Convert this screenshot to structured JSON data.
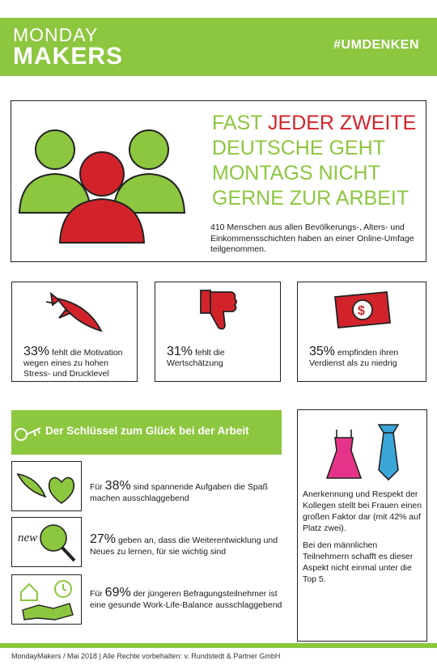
{
  "header": {
    "logo_line1": "MONDAY",
    "logo_line2": "MAKERS",
    "hashtag": "#UMDENKEN"
  },
  "hero": {
    "title_part1": "FAST ",
    "title_highlight": "JEDER ZWEITE",
    "title_part2": "DEUTSCHE GEHT MONTAGS NICHT GERNE ZUR ARBEIT",
    "text": "410 Menschen aus allen Bevölkerungs-, Alters- und Einkommensschichten haben an einer Online-Umfage teilgenommen."
  },
  "stats": [
    {
      "pct": "33%",
      "text": " fehlt die Motivation wegen eines zu hohen Stress- und Drucklevel",
      "icon": "rocket-icon"
    },
    {
      "pct": "31%",
      "text": " fehlt die Wertschätzung",
      "icon": "thumbs-down-icon"
    },
    {
      "pct": "35%",
      "text": " empfinden ihren Verdienst als zu niedrig",
      "icon": "money-icon"
    }
  ],
  "key_section": {
    "title": "Der Schlüssel zum Glück bei der Arbeit",
    "items": [
      {
        "prefix": "Für ",
        "pct": "38%",
        "text": " sind spannende Aufgaben die Spaß machen ausschlaggebend",
        "icon": "rocket-heart-icon"
      },
      {
        "prefix": "",
        "pct": "27%",
        "text": " geben an, dass die Weiterentwicklung und Neues zu lernen, für sie wichtig sind",
        "icon": "new-magnifier-icon",
        "icon_text": "new"
      },
      {
        "prefix": "Für ",
        "pct": "69%",
        "text": " der jüngeren Befragungsteilnehmer ist eine gesunde Work-Life-Balance ausschlaggebend",
        "icon": "home-clock-handshake-icon"
      }
    ]
  },
  "side": {
    "text1": "Anerkennung und Respekt der Kollegen stellt bei Frauen einen großen Faktor dar (mit 42% auf Platz zwei).",
    "text2": "Bei den männlichen Teilnehmern schafft es dieser Aspekt nicht einmal unter die Top 5."
  },
  "footer": "MondayMakers / Mai 2018  |  Alle Rechte vorbehalten: v. Rundstedt & Partner GmbH",
  "colors": {
    "green": "#8dc63f",
    "red": "#d2232a",
    "pink": "#e6338a",
    "blue": "#3aa7d8"
  }
}
